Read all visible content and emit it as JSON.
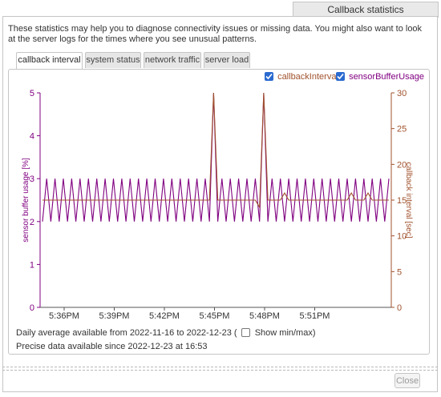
{
  "dialog": {
    "title": "Callback statistics",
    "intro": "These statistics may help you to diagnose connectivity issues or missing data. You might also want to look at the server logs for the times where you see unusual patterns.",
    "close_label": "Close"
  },
  "tabs": [
    {
      "label": "callback interval",
      "active": true
    },
    {
      "label": "system status",
      "active": false
    },
    {
      "label": "network traffic",
      "active": false
    },
    {
      "label": "server load",
      "active": false
    }
  ],
  "legend": {
    "callback_label": "callbackInterval",
    "callback_checked": true,
    "sensor_label": "sensorBufferUsage",
    "sensor_checked": true
  },
  "footer": {
    "daily_prefix": "Daily average available from 2022-11-16 to 2022-12-23 (",
    "show_minmax_label": "Show min/max)",
    "show_minmax_checked": false,
    "precise": "Precise data available since 2022-12-23 at 16:53"
  },
  "colors": {
    "callback": "#a0522d",
    "sensor": "#800080",
    "checkbox": "#2a6ad0"
  },
  "chart_data": {
    "type": "line",
    "x_ticks": [
      "5:36PM",
      "5:39PM",
      "5:42PM",
      "5:45PM",
      "5:48PM",
      "5:51PM"
    ],
    "y_left": {
      "label": "sensor buffer usage [%]",
      "ticks": [
        0,
        1,
        2,
        3,
        4,
        5
      ],
      "range": [
        0,
        5
      ]
    },
    "y_right": {
      "label": "callback interval [sec]",
      "ticks": [
        0,
        5,
        10,
        15,
        20,
        25,
        30
      ],
      "range": [
        0,
        30
      ]
    },
    "series": [
      {
        "name": "sensorBufferUsage",
        "axis": "left",
        "values": [
          2,
          3,
          2,
          3,
          2,
          3,
          2,
          3,
          2,
          3,
          2,
          3,
          2,
          3,
          2,
          3,
          2,
          3,
          2,
          3,
          2,
          3,
          2,
          3,
          2,
          3,
          2,
          3,
          2,
          3,
          2,
          3,
          2,
          3,
          2,
          3,
          2,
          3,
          2,
          3,
          2,
          5,
          2,
          3,
          2,
          3,
          2,
          3,
          2,
          3,
          2,
          3,
          2,
          5,
          2,
          3,
          2,
          3,
          2,
          3,
          2,
          3,
          2,
          3,
          2,
          3,
          2,
          3,
          2,
          3,
          2,
          3,
          2,
          3,
          2,
          3,
          2,
          3,
          2,
          3,
          2,
          3,
          2,
          3
        ]
      },
      {
        "name": "callbackInterval",
        "axis": "right",
        "values": [
          15,
          15,
          15,
          15,
          15,
          15,
          15,
          15,
          15,
          15,
          15,
          15,
          15,
          15,
          15,
          15,
          15,
          15,
          15,
          15,
          15,
          15,
          15,
          15,
          15,
          15,
          15,
          15,
          15,
          15,
          15,
          15,
          15,
          15,
          15,
          15,
          15,
          15,
          15,
          15,
          15,
          30,
          15,
          15,
          15,
          15,
          15,
          15,
          15,
          15,
          15,
          15,
          14,
          30,
          15,
          15,
          15,
          15,
          16,
          15,
          15,
          15,
          15,
          15,
          15,
          15,
          15,
          15,
          15,
          15,
          15,
          15,
          15,
          15,
          16,
          15,
          15,
          15,
          16,
          15,
          15,
          15,
          15,
          15
        ]
      }
    ]
  }
}
